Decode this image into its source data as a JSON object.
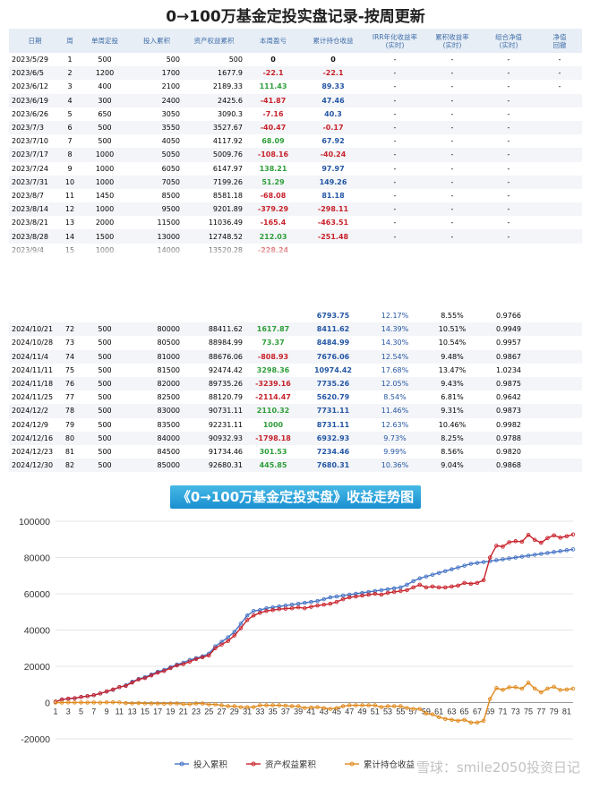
{
  "title": "0→100万基金定投实盘记录-按周更新",
  "table": {
    "headers": [
      "日期",
      "周",
      "单周定投",
      "投入累积",
      "资产权益累积",
      "本周盈亏",
      "累计持仓收益",
      "IRR年化收益率\n(实时)",
      "累积收益率\n(实时)",
      "组合净值\n(实时)",
      "净值\n回撤"
    ],
    "rows_top": [
      [
        "2023/5/29",
        "1",
        "500",
        "500",
        "500",
        "0",
        "0",
        "-",
        "-",
        "-",
        "-"
      ],
      [
        "2023/6/5",
        "2",
        "1200",
        "1700",
        "1677.9",
        "-22.1",
        "-22.1",
        "-",
        "-",
        "-",
        "-"
      ],
      [
        "2023/6/12",
        "3",
        "400",
        "2100",
        "2189.33",
        "111.43",
        "89.33",
        "-",
        "-",
        "-",
        "-"
      ],
      [
        "2023/6/19",
        "4",
        "300",
        "2400",
        "2425.6",
        "-41.87",
        "47.46",
        "-",
        "-",
        "-",
        ""
      ],
      [
        "2023/6/26",
        "5",
        "650",
        "3050",
        "3090.3",
        "-7.16",
        "40.3",
        "-",
        "-",
        "-",
        ""
      ],
      [
        "2023/7/3",
        "6",
        "500",
        "3550",
        "3527.67",
        "-40.47",
        "-0.17",
        "-",
        "-",
        "-",
        ""
      ],
      [
        "2023/7/10",
        "7",
        "500",
        "4050",
        "4117.92",
        "68.09",
        "67.92",
        "-",
        "-",
        "-",
        ""
      ],
      [
        "2023/7/17",
        "8",
        "1000",
        "5050",
        "5009.76",
        "-108.16",
        "-40.24",
        "-",
        "-",
        "-",
        ""
      ],
      [
        "2023/7/24",
        "9",
        "1000",
        "6050",
        "6147.97",
        "138.21",
        "97.97",
        "-",
        "-",
        "-",
        ""
      ],
      [
        "2023/7/31",
        "10",
        "1000",
        "7050",
        "7199.26",
        "51.29",
        "149.26",
        "-",
        "-",
        "-",
        ""
      ],
      [
        "2023/8/7",
        "11",
        "1450",
        "8500",
        "8581.18",
        "-68.08",
        "81.18",
        "-",
        "-",
        "-",
        ""
      ],
      [
        "2023/8/14",
        "12",
        "1000",
        "9500",
        "9201.89",
        "-379.29",
        "-298.11",
        "-",
        "-",
        "-",
        ""
      ],
      [
        "2023/8/21",
        "13",
        "2000",
        "11500",
        "11036.49",
        "-165.4",
        "-463.51",
        "-",
        "-",
        "-",
        ""
      ],
      [
        "2023/8/28",
        "14",
        "1500",
        "13000",
        "12748.52",
        "212.03",
        "-251.48",
        "-",
        "-",
        "-",
        ""
      ],
      [
        "2023/9/4",
        "15",
        "1000",
        "14000",
        "13520.28",
        "-228.24",
        "",
        "",
        "",
        "",
        ""
      ]
    ],
    "rows_bottom": [
      [
        "",
        "",
        "",
        "",
        "",
        "",
        "6793.75",
        "12.17%",
        "8.55%",
        "0.9766",
        ""
      ],
      [
        "2024/10/21",
        "72",
        "500",
        "80000",
        "88411.62",
        "1617.87",
        "8411.62",
        "14.39%",
        "10.51%",
        "0.9949",
        ""
      ],
      [
        "2024/10/28",
        "73",
        "500",
        "80500",
        "88984.99",
        "73.37",
        "8484.99",
        "14.30%",
        "10.54%",
        "0.9957",
        ""
      ],
      [
        "2024/11/4",
        "74",
        "500",
        "81000",
        "88676.06",
        "-808.93",
        "7676.06",
        "12.54%",
        "9.48%",
        "0.9867",
        ""
      ],
      [
        "2024/11/11",
        "75",
        "500",
        "81500",
        "92474.42",
        "3298.36",
        "10974.42",
        "17.68%",
        "13.47%",
        "1.0234",
        ""
      ],
      [
        "2024/11/18",
        "76",
        "500",
        "82000",
        "89735.26",
        "-3239.16",
        "7735.26",
        "12.05%",
        "9.43%",
        "0.9875",
        ""
      ],
      [
        "2024/11/25",
        "77",
        "500",
        "82500",
        "88120.79",
        "-2114.47",
        "5620.79",
        "8.54%",
        "6.81%",
        "0.9642",
        ""
      ],
      [
        "2024/12/2",
        "78",
        "500",
        "83000",
        "90731.11",
        "2110.32",
        "7731.11",
        "11.46%",
        "9.31%",
        "0.9873",
        ""
      ],
      [
        "2024/12/9",
        "79",
        "500",
        "83500",
        "92231.11",
        "1000",
        "8731.11",
        "12.63%",
        "10.46%",
        "0.9982",
        ""
      ],
      [
        "2024/12/16",
        "80",
        "500",
        "84000",
        "90932.93",
        "-1798.18",
        "6932.93",
        "9.73%",
        "8.25%",
        "0.9788",
        ""
      ],
      [
        "2024/12/23",
        "81",
        "500",
        "84500",
        "91734.46",
        "301.53",
        "7234.46",
        "9.99%",
        "8.56%",
        "0.9820",
        ""
      ],
      [
        "2024/12/30",
        "82",
        "500",
        "85000",
        "92680.31",
        "445.85",
        "7680.31",
        "10.36%",
        "9.04%",
        "0.9868",
        ""
      ]
    ]
  },
  "chart_banner": "《0→100万基金定投实盘》收益走势图",
  "watermark": "雪球：smile2050投资日记",
  "chart_data": {
    "type": "line",
    "title": "《0→100万基金定投实盘》收益走势图",
    "x": [
      1,
      2,
      3,
      4,
      5,
      6,
      7,
      8,
      9,
      10,
      11,
      12,
      13,
      14,
      15,
      16,
      17,
      18,
      19,
      20,
      21,
      22,
      23,
      24,
      25,
      26,
      27,
      28,
      29,
      30,
      31,
      32,
      33,
      34,
      35,
      36,
      37,
      38,
      39,
      40,
      41,
      42,
      43,
      44,
      45,
      46,
      47,
      48,
      49,
      50,
      51,
      52,
      53,
      54,
      55,
      56,
      57,
      58,
      59,
      60,
      61,
      62,
      63,
      64,
      65,
      66,
      67,
      68,
      69,
      70,
      71,
      72,
      73,
      74,
      75,
      76,
      77,
      78,
      79,
      80,
      81,
      82
    ],
    "xticks": [
      1,
      3,
      5,
      7,
      9,
      11,
      13,
      15,
      17,
      19,
      21,
      23,
      25,
      27,
      29,
      31,
      33,
      35,
      37,
      39,
      41,
      43,
      45,
      47,
      49,
      51,
      53,
      55,
      57,
      59,
      61,
      63,
      65,
      67,
      69,
      71,
      73,
      75,
      77,
      79,
      81
    ],
    "ylim": [
      -20000,
      100000
    ],
    "yticks": [
      -20000,
      0,
      20000,
      40000,
      60000,
      80000,
      100000
    ],
    "legend_position": "bottom",
    "series": [
      {
        "name": "投入累积",
        "color": "#4472c4",
        "values": [
          500,
          1700,
          2100,
          2400,
          3050,
          3550,
          4050,
          5050,
          6050,
          7050,
          8500,
          9500,
          11500,
          13000,
          14000,
          15500,
          17000,
          18000,
          19500,
          21000,
          22000,
          23500,
          24500,
          25500,
          27000,
          31000,
          33500,
          36000,
          39000,
          43500,
          48000,
          50500,
          51000,
          52000,
          52500,
          53000,
          53500,
          54000,
          54500,
          55000,
          55500,
          56000,
          57000,
          58000,
          58500,
          59000,
          59500,
          60000,
          60500,
          61000,
          61500,
          62000,
          62500,
          63000,
          63500,
          65000,
          67000,
          68500,
          69500,
          70500,
          71500,
          72500,
          73500,
          74500,
          75500,
          76500,
          77000,
          77500,
          78000,
          78500,
          79000,
          79500,
          80000,
          80500,
          81000,
          81500,
          82000,
          82500,
          83000,
          83500,
          84000,
          84500
        ]
      },
      {
        "name": "资产权益累积",
        "color": "#c8222b",
        "values": [
          500,
          1677.9,
          2189.33,
          2425.6,
          3090.3,
          3527.67,
          4117.92,
          5009.76,
          6147.97,
          7199.26,
          8581.18,
          9201.89,
          11036.49,
          12748.52,
          13520.28,
          15000,
          16500,
          17400,
          19000,
          20500,
          21200,
          22600,
          24000,
          25000,
          26000,
          30000,
          32000,
          34000,
          37000,
          41000,
          45500,
          48000,
          49500,
          50500,
          51000,
          51500,
          51800,
          52000,
          52500,
          52000,
          52800,
          53500,
          54000,
          54500,
          55500,
          57000,
          58000,
          58500,
          59000,
          59500,
          60000,
          59500,
          60500,
          61000,
          61500,
          62000,
          63500,
          65000,
          63500,
          64000,
          63500,
          63500,
          64000,
          64500,
          66000,
          65500,
          66000,
          67500,
          80000,
          86500,
          86000,
          88411.62,
          88984.99,
          88676.06,
          92474.42,
          89735.26,
          88120.79,
          90731.11,
          92231.11,
          90932.93,
          91734.46,
          92680.31
        ]
      },
      {
        "name": "累计持仓收益",
        "color": "#e08a1e",
        "values": [
          0,
          -22.1,
          89.33,
          47.46,
          40.3,
          -0.17,
          67.92,
          -40.24,
          97.97,
          149.26,
          81.18,
          -298.11,
          -463.51,
          -251.48,
          -479.72,
          -500,
          -500,
          -600,
          -500,
          -500,
          -800,
          -900,
          -500,
          -500,
          -1000,
          -1000,
          -1500,
          -2000,
          -2000,
          -2500,
          -2500,
          -2500,
          -1500,
          -1500,
          -1500,
          -1500,
          -1700,
          -2000,
          -2000,
          -3000,
          -2700,
          -2500,
          -3000,
          -3500,
          -3000,
          -2000,
          -1500,
          -1500,
          -1500,
          -1500,
          -1500,
          -2500,
          -2000,
          -2000,
          -2000,
          -3000,
          -3500,
          -3500,
          -6000,
          -6500,
          -8000,
          -9000,
          -9500,
          -10000,
          -9500,
          -11000,
          -11000,
          -10000,
          2000,
          8000,
          7000,
          8411.62,
          8484.99,
          7676.06,
          10974.42,
          7735.26,
          5620.79,
          7731.11,
          8731.11,
          6932.93,
          7234.46,
          7680.31
        ]
      }
    ]
  }
}
